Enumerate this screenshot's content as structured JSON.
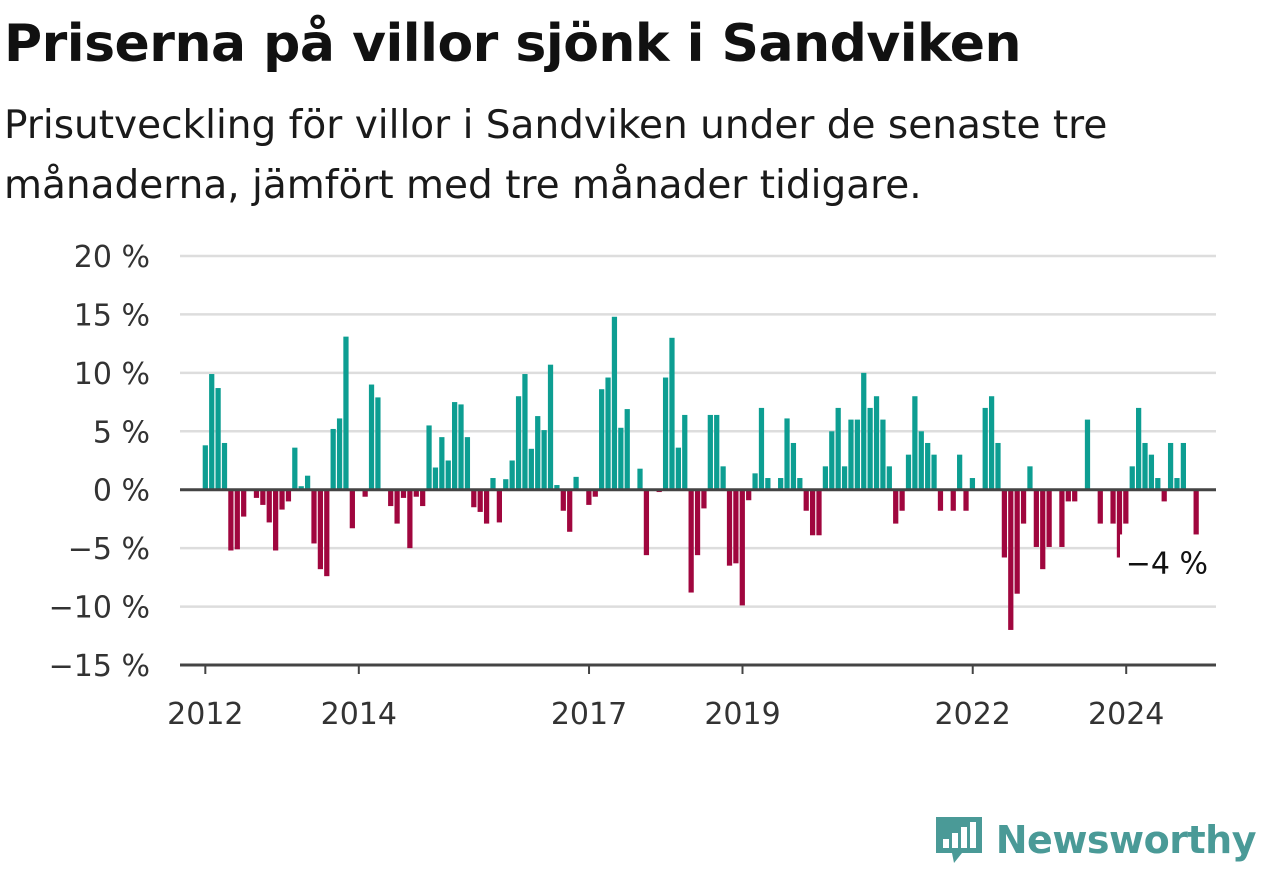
{
  "header": {
    "title": "Priserna på villor sjönk i Sandviken",
    "subtitle": "Prisutveckling för villor i Sandviken under de senaste tre månaderna, jämfört med tre månader tidigare."
  },
  "logo": {
    "text": "Newsworthy",
    "icon": "newsworthy-chart-bubble-icon"
  },
  "colors": {
    "positive": "#0d9e92",
    "negative": "#a0063e",
    "grid": "#dddddd",
    "axis": "#444444"
  },
  "chart_data": {
    "type": "bar",
    "ylim": [
      -15,
      20
    ],
    "y_ticks": [
      20,
      15,
      10,
      5,
      0,
      -5,
      -10,
      -15
    ],
    "y_tick_labels": [
      "20 %",
      "15 %",
      "10 %",
      "5 %",
      "0 %",
      "−5 %",
      "−10 %",
      "−15 %"
    ],
    "x_ticks": [
      2012,
      2014,
      2017,
      2019,
      2022,
      2024
    ],
    "x_tick_labels": [
      "2012",
      "2014",
      "2017",
      "2019",
      "2022",
      "2024"
    ],
    "x_range": [
      2011.67,
      2025.17
    ],
    "grid": true,
    "annotation": {
      "text": "−4 %",
      "x": 2024.83,
      "value": -4
    },
    "series": [
      {
        "x_start": 2012.0,
        "x_step": 0.0833,
        "values": [
          3.8,
          9.9,
          8.7,
          4.0,
          -5.2,
          -5.1,
          -2.3,
          0,
          -0.7,
          -1.3,
          -2.8,
          -5.2,
          -1.7,
          -1.0,
          3.6,
          0.3,
          1.2,
          -4.6,
          -6.8,
          -7.4,
          5.2,
          6.1,
          13.1,
          -3.3,
          0,
          -0.6,
          9.0,
          7.9,
          0,
          -1.4,
          -2.9,
          -0.7,
          -5.0,
          -0.6,
          -1.4,
          5.5,
          1.9,
          4.5,
          2.5,
          7.5,
          7.3,
          4.5,
          -1.5,
          -1.9,
          -2.9,
          1.0,
          -2.8,
          0.9,
          2.5,
          8.0,
          9.9,
          3.5,
          6.3,
          5.1,
          10.7,
          0.4,
          -1.8,
          -3.6,
          1.1,
          0,
          -1.3,
          -0.6,
          8.6,
          9.6,
          14.8,
          5.3,
          6.9,
          0,
          1.8,
          -5.6,
          0,
          -0.2,
          9.6,
          13.0,
          3.6,
          6.4,
          -8.8,
          -5.6,
          -1.6,
          6.4,
          6.4,
          2.0,
          -6.5,
          -6.3,
          -9.9,
          -0.9,
          1.4,
          7.0,
          1.0,
          0,
          1.0,
          6.1,
          4.0,
          1.0,
          -1.8,
          -3.9,
          -3.9,
          2.0,
          5.0,
          7.0,
          2.0,
          6.0,
          6.0,
          10.0,
          7.0,
          8.0,
          6.0,
          2.0,
          -2.9,
          -1.8,
          3.0,
          8.0,
          5.0,
          4.0,
          3.0,
          -1.8,
          0,
          -1.8,
          3.0,
          -1.8,
          1.0,
          0,
          7.0,
          8.0,
          4.0,
          -5.8,
          -12.0,
          -8.9,
          -2.9,
          2.0,
          -4.9,
          -6.8,
          -4.9,
          0,
          -4.9,
          -1.0,
          -1.0,
          0,
          6.0,
          0,
          -2.9,
          0,
          -2.9,
          -5.8,
          -2.9,
          2.0,
          7.0,
          4.0,
          3.0,
          1.0,
          -1.0,
          4.0,
          1.0,
          4.0,
          0,
          -4.0
        ]
      }
    ]
  }
}
